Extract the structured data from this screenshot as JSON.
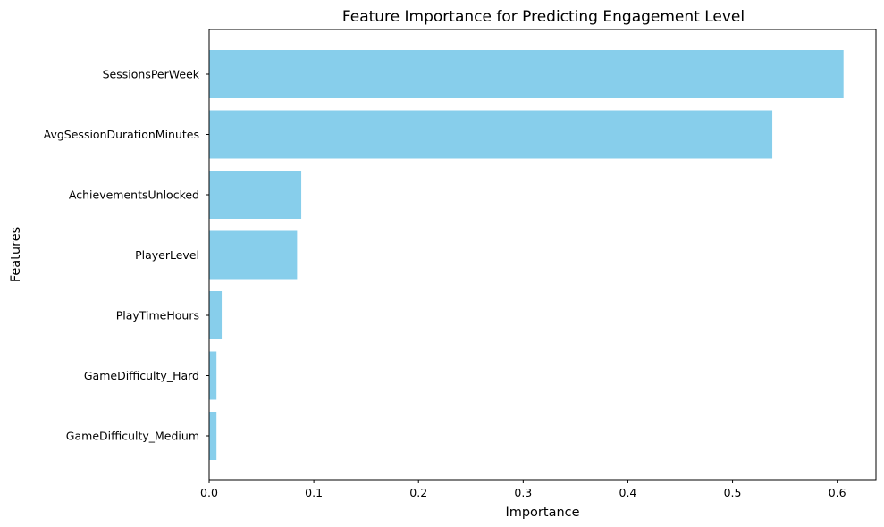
{
  "chart_data": {
    "type": "bar",
    "orientation": "horizontal",
    "title": "Feature Importance for Predicting Engagement Level",
    "xlabel": "Importance",
    "ylabel": "Features",
    "categories": [
      "SessionsPerWeek",
      "AvgSessionDurationMinutes",
      "AchievementsUnlocked",
      "PlayerLevel",
      "PlayTimeHours",
      "GameDifficulty_Hard",
      "GameDifficulty_Medium"
    ],
    "values": [
      0.606,
      0.538,
      0.088,
      0.084,
      0.012,
      0.007,
      0.007
    ],
    "xlim": [
      0,
      0.637
    ],
    "xticks": [
      0,
      0.1,
      0.2,
      0.3,
      0.4,
      0.5,
      0.6
    ],
    "xtick_labels": [
      "0.0",
      "0.1",
      "0.2",
      "0.3",
      "0.4",
      "0.5",
      "0.6"
    ],
    "bar_color": "#87CEEB",
    "grid": false,
    "legend": "none"
  }
}
